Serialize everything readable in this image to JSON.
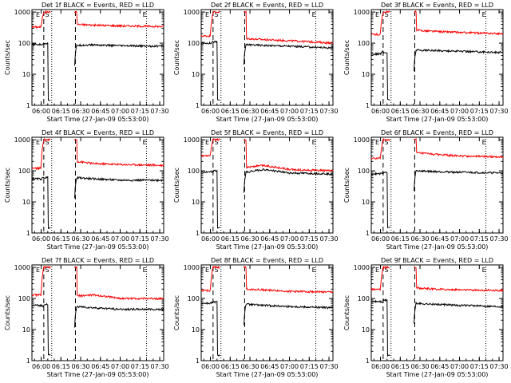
{
  "chart_data": [
    {
      "type": "line",
      "title": "Det 1f BLACK = Events, RED = LLD",
      "ylabel": "Counts/sec",
      "xlabel": "Start Time (27-Jan-09 05:53:00)",
      "x_ticks": [
        "06:00",
        "06:15",
        "06:30",
        "06:45",
        "07:00",
        "07:15",
        "07:30"
      ],
      "y_ticks": [
        "1",
        "10",
        "100",
        "1000"
      ],
      "ylim": [
        1,
        1200
      ],
      "y_scale": "log",
      "markers": [
        "E",
        "S",
        "E"
      ],
      "series": [
        {
          "color": "#ff0000",
          "levels": [
            330,
            1000,
            400,
            380,
            360,
            340
          ]
        },
        {
          "color": "#000000",
          "levels": [
            90,
            95,
            85,
            88,
            82,
            80
          ]
        }
      ]
    },
    {
      "type": "line",
      "title": "Det 2f BLACK = Events, RED = LLD",
      "ylabel": "Counts/sec",
      "xlabel": "Start Time (27-Jan-09 05:53:00)",
      "x_ticks": [
        "06:00",
        "06:15",
        "06:30",
        "06:45",
        "07:00",
        "07:15",
        "07:30"
      ],
      "y_ticks": [
        "1",
        "10",
        "100",
        "1000"
      ],
      "ylim": [
        1,
        1200
      ],
      "y_scale": "log",
      "markers": [
        "E",
        "S",
        "E"
      ],
      "series": [
        {
          "color": "#ff0000",
          "levels": [
            170,
            1000,
            140,
            130,
            120,
            100
          ]
        },
        {
          "color": "#000000",
          "levels": [
            100,
            110,
            90,
            85,
            80,
            70
          ]
        }
      ]
    },
    {
      "type": "line",
      "title": "Det 3f BLACK = Events, RED = LLD",
      "ylabel": "Counts/sec",
      "xlabel": "Start Time (27-Jan-09 05:53:00)",
      "x_ticks": [
        "06:00",
        "06:15",
        "06:30",
        "06:45",
        "07:00",
        "07:15",
        "07:30"
      ],
      "y_ticks": [
        "1",
        "10",
        "100",
        "1000"
      ],
      "ylim": [
        1,
        1200
      ],
      "y_scale": "log",
      "markers": [
        "E",
        "S",
        "E"
      ],
      "series": [
        {
          "color": "#ff0000",
          "levels": [
            190,
            1000,
            260,
            240,
            220,
            200
          ]
        },
        {
          "color": "#000000",
          "levels": [
            45,
            55,
            60,
            58,
            55,
            50
          ]
        }
      ]
    },
    {
      "type": "line",
      "title": "Det 4f BLACK = Events, RED = LLD",
      "ylabel": "Counts/sec",
      "xlabel": "Start Time (27-Jan-09 05:53:00)",
      "x_ticks": [
        "06:00",
        "06:15",
        "06:30",
        "06:45",
        "07:00",
        "07:15",
        "07:30"
      ],
      "y_ticks": [
        "1",
        "10",
        "100",
        "1000"
      ],
      "ylim": [
        1,
        1200
      ],
      "y_scale": "log",
      "markers": [
        "E",
        "S",
        "E"
      ],
      "series": [
        {
          "color": "#ff0000",
          "levels": [
            120,
            1000,
            200,
            170,
            160,
            150
          ]
        },
        {
          "color": "#000000",
          "levels": [
            55,
            60,
            60,
            55,
            50,
            50
          ]
        }
      ]
    },
    {
      "type": "line",
      "title": "Det 5f BLACK = Events, RED = LLD",
      "ylabel": "Counts/sec",
      "xlabel": "Start Time (27-Jan-09 05:53:00)",
      "x_ticks": [
        "06:00",
        "06:15",
        "06:30",
        "06:45",
        "07:00",
        "07:15",
        "07:30"
      ],
      "y_ticks": [
        "1",
        "10",
        "100",
        "1000"
      ],
      "ylim": [
        1,
        1200
      ],
      "y_scale": "log",
      "markers": [
        "E",
        "S",
        "E"
      ],
      "series": [
        {
          "color": "#ff0000",
          "levels": [
            300,
            1000,
            130,
            150,
            110,
            100
          ]
        },
        {
          "color": "#000000",
          "levels": [
            90,
            95,
            90,
            110,
            85,
            80
          ]
        }
      ]
    },
    {
      "type": "line",
      "title": "Det 6f BLACK = Events, RED = LLD",
      "ylabel": "Counts/sec",
      "xlabel": "Start Time (27-Jan-09 05:53:00)",
      "x_ticks": [
        "06:00",
        "06:15",
        "06:30",
        "06:45",
        "07:00",
        "07:15",
        "07:30"
      ],
      "y_ticks": [
        "1",
        "10",
        "100",
        "1000"
      ],
      "ylim": [
        1,
        1200
      ],
      "y_scale": "log",
      "markers": [
        "E",
        "S",
        "E"
      ],
      "series": [
        {
          "color": "#ff0000",
          "levels": [
            250,
            1000,
            380,
            340,
            300,
            280
          ]
        },
        {
          "color": "#000000",
          "levels": [
            80,
            90,
            100,
            95,
            90,
            85
          ]
        }
      ]
    },
    {
      "type": "line",
      "title": "Det 7f BLACK = Events, RED = LLD",
      "ylabel": "Counts/sec",
      "xlabel": "Start Time (27-Jan-09 05:53:00)",
      "x_ticks": [
        "06:00",
        "06:15",
        "06:30",
        "06:45",
        "07:00",
        "07:15",
        "07:30"
      ],
      "y_ticks": [
        "1",
        "10",
        "100",
        "1000"
      ],
      "ylim": [
        1,
        1200
      ],
      "y_scale": "log",
      "markers": [
        "E",
        "S",
        "E"
      ],
      "series": [
        {
          "color": "#ff0000",
          "levels": [
            130,
            1000,
            120,
            130,
            100,
            100
          ]
        },
        {
          "color": "#000000",
          "levels": [
            60,
            55,
            55,
            50,
            45,
            45
          ]
        }
      ]
    },
    {
      "type": "line",
      "title": "Det 8f BLACK = Events, RED = LLD",
      "ylabel": "Counts/sec",
      "xlabel": "Start Time (27-Jan-09 05:53:00)",
      "x_ticks": [
        "06:00",
        "06:15",
        "06:30",
        "06:45",
        "07:00",
        "07:15",
        "07:30"
      ],
      "y_ticks": [
        "1",
        "10",
        "100",
        "1000"
      ],
      "ylim": [
        1,
        1200
      ],
      "y_scale": "log",
      "markers": [
        "E",
        "S",
        "E"
      ],
      "series": [
        {
          "color": "#ff0000",
          "levels": [
            180,
            1000,
            200,
            190,
            170,
            160
          ]
        },
        {
          "color": "#000000",
          "levels": [
            70,
            75,
            65,
            60,
            55,
            50
          ]
        }
      ]
    },
    {
      "type": "line",
      "title": "Det 9f BLACK = Events, RED = LLD",
      "ylabel": "Counts/sec",
      "xlabel": "Start Time (27-Jan-09 05:53:00)",
      "x_ticks": [
        "06:00",
        "06:15",
        "06:30",
        "06:45",
        "07:00",
        "07:15",
        "07:30"
      ],
      "y_ticks": [
        "1",
        "10",
        "100",
        "1000"
      ],
      "ylim": [
        1,
        1200
      ],
      "y_scale": "log",
      "markers": [
        "E",
        "S",
        "E"
      ],
      "series": [
        {
          "color": "#ff0000",
          "levels": [
            200,
            1000,
            220,
            200,
            190,
            180
          ]
        },
        {
          "color": "#000000",
          "levels": [
            80,
            75,
            70,
            65,
            60,
            55
          ]
        }
      ]
    }
  ]
}
